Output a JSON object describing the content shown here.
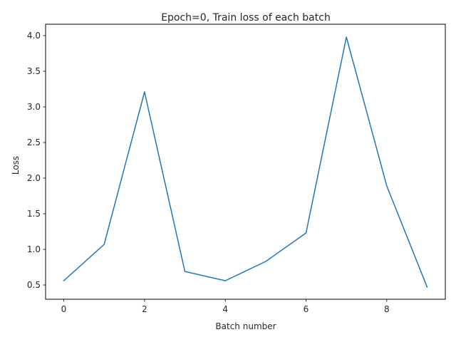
{
  "chart_data": {
    "type": "line",
    "title": "Epoch=0, Train loss of each batch",
    "xlabel": "Batch number",
    "ylabel": "Loss",
    "x": [
      0,
      1,
      2,
      3,
      4,
      5,
      6,
      7,
      8,
      9
    ],
    "series": [
      {
        "name": "",
        "color": "#1f77b4",
        "values": [
          0.56,
          1.07,
          3.21,
          0.69,
          0.56,
          0.83,
          1.23,
          3.98,
          1.89,
          0.47
        ]
      }
    ],
    "xlim": [
      -0.45,
      9.45
    ],
    "ylim": [
      0.3,
      4.16
    ],
    "xticks": [
      0,
      2,
      4,
      6,
      8
    ],
    "xtick_labels": [
      "0",
      "2",
      "4",
      "6",
      "8"
    ],
    "yticks": [
      0.5,
      1.0,
      1.5,
      2.0,
      2.5,
      3.0,
      3.5,
      4.0
    ],
    "ytick_labels": [
      "0.5",
      "1.0",
      "1.5",
      "2.0",
      "2.5",
      "3.0",
      "3.5",
      "4.0"
    ],
    "grid": false,
    "legend": "none"
  }
}
